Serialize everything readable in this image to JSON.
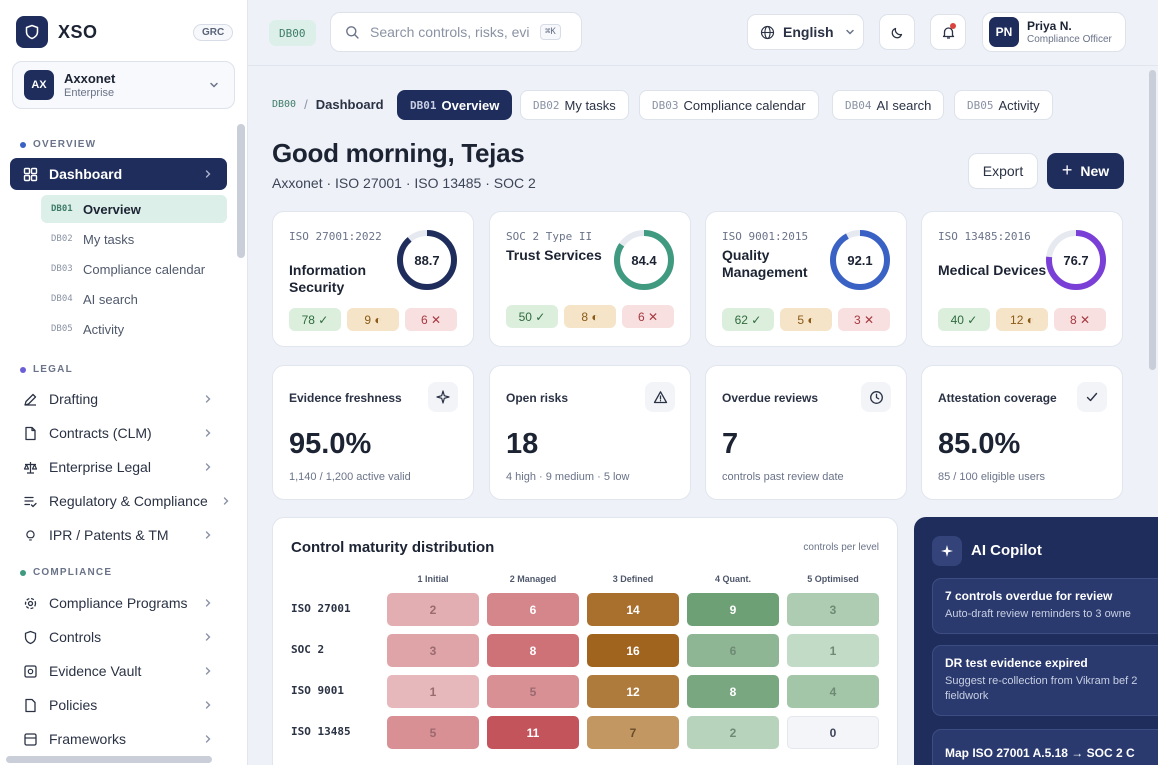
{
  "brand": {
    "name": "XSO",
    "badge": "GRC"
  },
  "org": {
    "avatar": "AX",
    "name": "Axxonet",
    "plan": "Enterprise"
  },
  "sidebar": {
    "overview_label": "OVERVIEW",
    "dashboard": "Dashboard",
    "sub_items": [
      {
        "code": "DB01",
        "label": "Overview"
      },
      {
        "code": "DB02",
        "label": "My tasks"
      },
      {
        "code": "DB03",
        "label": "Compliance calendar"
      },
      {
        "code": "DB04",
        "label": "AI search"
      },
      {
        "code": "DB05",
        "label": "Activity"
      }
    ],
    "legal_label": "LEGAL",
    "legal_items": [
      "Drafting",
      "Contracts (CLM)",
      "Enterprise Legal",
      "Regulatory & Compliance",
      "IPR / Patents & TM"
    ],
    "compliance_label": "COMPLIANCE",
    "compliance_items": [
      "Compliance Programs",
      "Controls",
      "Evidence Vault",
      "Policies",
      "Frameworks"
    ]
  },
  "topbar": {
    "db_code": "DB00",
    "search_placeholder": "Search controls, risks, evi",
    "search_shortcut": "⌘K",
    "language": "English",
    "user": {
      "initials": "PN",
      "name": "Priya N.",
      "role": "Compliance Officer"
    }
  },
  "breadcrumb": {
    "code": "DB00",
    "separator": "/",
    "current": "Dashboard"
  },
  "tabs": [
    {
      "code": "DB01",
      "label": "Overview"
    },
    {
      "code": "DB02",
      "label": "My tasks"
    },
    {
      "code": "DB03",
      "label": "Compliance calendar"
    },
    {
      "code": "DB04",
      "label": "AI search"
    },
    {
      "code": "DB05",
      "label": "Activity"
    }
  ],
  "header": {
    "greeting": "Good morning, Tejas",
    "subtitle": "Axxonet · ISO 27001 · ISO 13485 · SOC 2",
    "export_label": "Export",
    "new_label": "New"
  },
  "frameworks": [
    {
      "code": "ISO 27001:2022",
      "name": "Information Security",
      "score": 88.7,
      "score_label": "88.7",
      "color": "#1f2d5c",
      "ok": "78 ✓",
      "warn": "9 ◐",
      "bad": "6 ✕"
    },
    {
      "code": "SOC 2 Type II",
      "name": "Trust Services",
      "score": 84.4,
      "score_label": "84.4",
      "color": "#3f9a80",
      "ok": "50 ✓",
      "warn": "8 ◐",
      "bad": "6 ✕"
    },
    {
      "code": "ISO 9001:2015",
      "name": "Quality Management",
      "score": 92.1,
      "score_label": "92.1",
      "color": "#3a62c4",
      "ok": "62 ✓",
      "warn": "5 ◐",
      "bad": "3 ✕"
    },
    {
      "code": "ISO 13485:2016",
      "name": "Medical Devices",
      "score": 76.7,
      "score_label": "76.7",
      "color": "#7a3fd6",
      "ok": "40 ✓",
      "warn": "12 ◐",
      "bad": "8 ✕"
    }
  ],
  "kpis": [
    {
      "title": "Evidence freshness",
      "value": "95.0%",
      "sub": "1,140 / 1,200 active valid",
      "icon": "sparkle-icon"
    },
    {
      "title": "Open risks",
      "value": "18",
      "sub": "4 high · 9 medium · 5 low",
      "icon": "warning-icon"
    },
    {
      "title": "Overdue reviews",
      "value": "7",
      "sub": "controls past review date",
      "icon": "clock-icon"
    },
    {
      "title": "Attestation coverage",
      "value": "85.0%",
      "sub": "85 / 100 eligible users",
      "icon": "check-icon"
    }
  ],
  "heatmap": {
    "title": "Control maturity distribution",
    "unit": "controls per level",
    "levels": [
      "1 Initial",
      "2 Managed",
      "3 Defined",
      "4 Quant.",
      "5 Optimised"
    ],
    "rows": [
      {
        "label": "ISO 27001",
        "values": [
          2,
          6,
          14,
          9,
          3
        ]
      },
      {
        "label": "SOC 2",
        "values": [
          3,
          8,
          16,
          6,
          1
        ]
      },
      {
        "label": "ISO 9001",
        "values": [
          1,
          5,
          12,
          8,
          4
        ]
      },
      {
        "label": "ISO 13485",
        "values": [
          5,
          11,
          7,
          2,
          0
        ]
      }
    ]
  },
  "copilot": {
    "title": "AI Copilot",
    "items": [
      {
        "title": "7 controls overdue for review",
        "desc": "Auto-draft review reminders to 3 owne"
      },
      {
        "title": "DR test evidence expired",
        "desc": "Suggest re-collection from Vikram bef 2 fieldwork"
      },
      {
        "title": "Map ISO 27001 A.5.18 → SOC 2 C"
      }
    ]
  }
}
